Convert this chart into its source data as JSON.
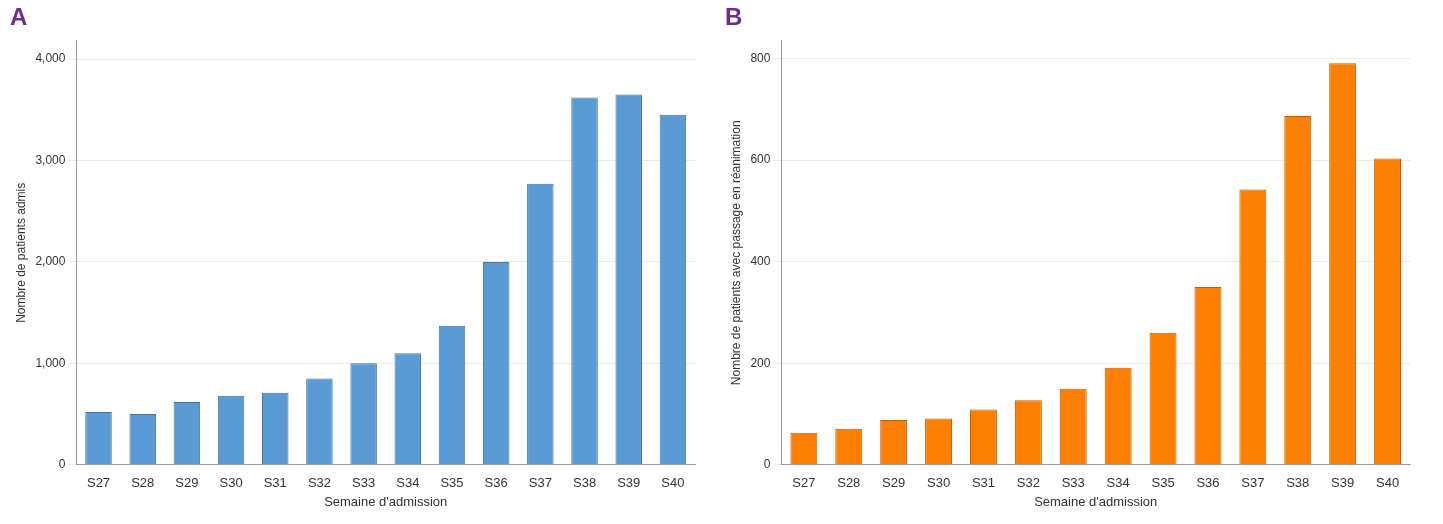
{
  "chart_data": [
    {
      "type": "bar",
      "title": "A",
      "xlabel": "Semaine d'admission",
      "ylabel": "Nombre de patients admis",
      "categories": [
        "S27",
        "S28",
        "S29",
        "S30",
        "S31",
        "S32",
        "S33",
        "S34",
        "S35",
        "S36",
        "S37",
        "S38",
        "S39",
        "S40"
      ],
      "values": [
        520,
        500,
        620,
        680,
        710,
        850,
        1000,
        1100,
        1370,
        2000,
        2770,
        3620,
        3650,
        3450
      ],
      "color": "#5b9bd5",
      "ylim": [
        0,
        4180
      ],
      "yticks": [
        0,
        {
          "value": 1000,
          "label": "1,000"
        },
        {
          "value": 2000,
          "label": "2,000"
        },
        {
          "value": 3000,
          "label": "3,000"
        },
        {
          "value": 4000,
          "label": "4,000"
        }
      ],
      "grid": "y"
    },
    {
      "type": "bar",
      "title": "B",
      "xlabel": "Semaine d'admission",
      "ylabel": "Nombre de patients avec passage en réanimation",
      "categories": [
        "S27",
        "S28",
        "S29",
        "S30",
        "S31",
        "S32",
        "S33",
        "S34",
        "S35",
        "S36",
        "S37",
        "S38",
        "S39",
        "S40"
      ],
      "values": [
        63,
        71,
        88,
        91,
        109,
        127,
        150,
        191,
        260,
        350,
        542,
        687,
        791,
        603
      ],
      "color": "#ff8000",
      "ylim": [
        0,
        835
      ],
      "yticks": [
        0,
        200,
        400,
        600,
        800
      ],
      "grid": "y"
    }
  ]
}
